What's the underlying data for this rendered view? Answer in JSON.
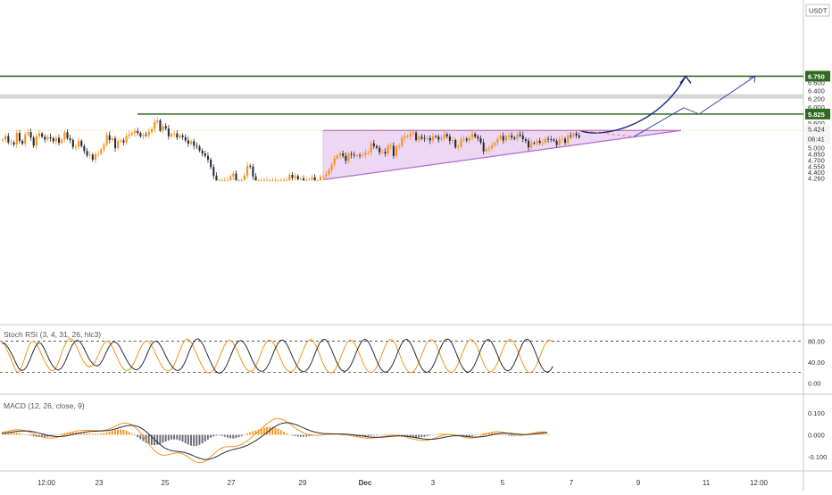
{
  "currency": "USDT",
  "colors": {
    "up": "#f7931a",
    "down": "#2b2b3a",
    "level_line": "#2e6b1e",
    "triangle_fill": "#e7c9ee",
    "triangle_line": "#b06bd0",
    "zone_fill": "#d6d6d6",
    "forecast_curve": "#1a237e",
    "forecast_line": "#3949ab",
    "forecast_dash": "#e57373",
    "rsi_k": "#f7931a",
    "rsi_d": "#2b2b3a",
    "macd_line": "#f7931a",
    "signal_line": "#2b2b3a",
    "hist_pos": "#f7931a",
    "hist_neg": "#6b6b78"
  },
  "chart_data": [
    {
      "type": "candlestick",
      "title": "",
      "x_tick_labels": [
        "12:00",
        "23",
        "25",
        "27",
        "29",
        "Dec",
        "3",
        "5",
        "7",
        "9",
        "11",
        "12:00"
      ],
      "y_tick_labels": [
        "4.260",
        "4.400",
        "4.550",
        "4.700",
        "4.850",
        "5.000",
        "5.200",
        "5.600",
        "6.000",
        "6.200",
        "6.400",
        "6.600"
      ],
      "ylim": [
        4.2,
        6.95
      ],
      "close": [
        5.2,
        5.29,
        5.13,
        5.13,
        5.08,
        5.36,
        5.17,
        5.1,
        5.33,
        5.38,
        5.25,
        5.05,
        5.28,
        5.35,
        5.27,
        5.2,
        5.26,
        5.23,
        5.16,
        5.24,
        5.12,
        5.2,
        5.38,
        5.23,
        5.19,
        5.02,
        5.02,
        5.17,
        5.04,
        4.92,
        4.81,
        4.83,
        4.71,
        4.84,
        4.85,
        4.96,
        5.08,
        5.31,
        5.19,
        5.23,
        4.99,
        5.16,
        5.18,
        5.13,
        5.29,
        5.33,
        5.36,
        5.41,
        5.36,
        5.28,
        5.32,
        5.31,
        5.39,
        5.46,
        5.63,
        5.67,
        5.42,
        5.53,
        5.47,
        5.28,
        5.34,
        5.35,
        5.25,
        5.3,
        5.26,
        5.18,
        5.1,
        5.16,
        5.05,
        5.03,
        4.93,
        4.86,
        4.8,
        4.71,
        4.53,
        4.32,
        4.2,
        4.2,
        4.2,
        4.2,
        4.2,
        4.3,
        4.37,
        4.2,
        4.2,
        4.2,
        4.32,
        4.56,
        4.54,
        4.3,
        4.2,
        4.2,
        4.2,
        4.2,
        4.2,
        4.2,
        4.2,
        4.2,
        4.2,
        4.2,
        4.2,
        4.2,
        4.34,
        4.26,
        4.31,
        4.23,
        4.25,
        4.2,
        4.2,
        4.22,
        4.28,
        4.2,
        4.2,
        4.29,
        4.29,
        4.35,
        4.46,
        4.59,
        4.74,
        4.81,
        4.86,
        4.8,
        4.68,
        4.85,
        4.83,
        4.81,
        4.82,
        4.81,
        4.82,
        4.88,
        4.89,
        5.11,
        5.04,
        5.0,
        4.89,
        4.9,
        4.86,
        5.05,
        5.05,
        4.8,
        5.03,
        5.05,
        5.24,
        5.28,
        5.28,
        5.35,
        5.37,
        5.19,
        5.27,
        5.23,
        5.22,
        5.24,
        5.18,
        5.28,
        5.27,
        5.2,
        5.24,
        5.33,
        5.28,
        5.17,
        5.19,
        5.01,
        5.03,
        5.22,
        5.22,
        5.18,
        5.24,
        5.34,
        5.27,
        5.23,
        5.13,
        4.91,
        4.97,
        4.99,
        5.06,
        5.12,
        5.22,
        5.29,
        5.18,
        5.28,
        5.3,
        5.25,
        5.22,
        5.33,
        5.3,
        5.21,
        5.17,
        5.01,
        5.12,
        5.11,
        5.17,
        5.12,
        5.13,
        5.22,
        5.21,
        5.2,
        5.17,
        5.07,
        5.21,
        5.22,
        5.12,
        5.3,
        5.28,
        5.35,
        5.3,
        5.26
      ],
      "volume_like_note": "",
      "levels": [
        {
          "label": "6.750",
          "value": 6.75
        },
        {
          "label": "5.825",
          "value": 5.825
        },
        {
          "label": "5.424",
          "value": 5.424,
          "countdown": "06:41"
        }
      ],
      "resistance_zone": [
        6.2,
        6.31
      ],
      "pattern": "ascending triangle"
    },
    {
      "type": "line",
      "title": "Stoch RSI (3, 4, 31, 26, hlc3)",
      "y_tick_labels": [
        "80.00",
        "40.00",
        "0.00"
      ],
      "ylim": [
        -8,
        110
      ],
      "bands": [
        80,
        20
      ],
      "series": [
        {
          "values": [
            80.45,
            73.6,
            61.53,
            50.08,
            35.99,
            23.21,
            19.65,
            29.74,
            45.14,
            61.95,
            75.27,
            80.49,
            78.03,
            68.25,
            56.2,
            44.56,
            34.34,
            25.96,
            22.63,
            26.38,
            37.48,
            52.63,
            67.12,
            78.74,
            84.92,
            83.72,
            76.75,
            65.32,
            52.63,
            42.0,
            34.48,
            30.88,
            31.97,
            38.57,
            49.46,
            62.0,
            72.78,
            79.92,
            79.45,
            72.17,
            61.31,
            48.96,
            37.45,
            28.79,
            23.87,
            23.93,
            28.82,
            38.03,
            50.43,
            63.04,
            73.74,
            80.49,
            80.35,
            74.43,
            64.14,
            52.42,
            41.25,
            31.92,
            25.51,
            22.97,
            24.27,
            31.24,
            43.11,
            57.13,
            70.88,
            80.9,
            84.55,
            80.56,
            71.44,
            59.57,
            46.76,
            34.75,
            25.42,
            19.8,
            18.74,
            22.53,
            30.88,
            42.93,
            56.84,
            69.8,
            79.37,
            82.61,
            78.86,
            70.2,
            58.6,
            46.02,
            34.87,
            26.63,
            22.08,
            22.73,
            29.11,
            40.43,
            54.4,
            67.85,
            77.95,
            82.27,
            80.32,
            72.72,
            61.43,
            48.62,
            36.47,
            27.14,
            21.7,
            21.22,
            25.65,
            34.53,
            46.94,
            60.66,
            73.0,
            81.08,
            83.5,
            79.01,
            68.46,
            54.95,
            41.09,
            29.31,
            21.36,
            18.7,
            21.57,
            29.51,
            41.69,
            55.74,
            68.93,
            78.51,
            82.56,
            79.39,
            70.22,
            57.97,
            44.86,
            32.73,
            23.86,
            19.84,
            20.93,
            27.07,
            37.98,
            52.02,
            66.36,
            77.64,
            83.41,
            82.14,
            74.19,
            61.6,
            47.76,
            34.86,
            25.01,
            19.9,
            20.15,
            25.53,
            35.46,
            48.57,
            62.79,
            74.72,
            82.01,
            83.23,
            77.7,
            66.64,
            52.95,
            39.44,
            28.37,
            21.53,
            20.11,
            24.01,
            32.94,
            45.59,
            59.85,
            72.41,
            80.98,
            83.76,
            79.55,
            69.57,
            56.23,
            42.45,
            30.72,
            23.3,
            21.47,
            25.39,
            34.43,
            47.45,
            61.75,
            74.24,
            82.09,
            83.92,
            78.85,
            67.99,
            54.21,
            40.33,
            28.84,
            21.36,
            19.39,
            23.06,
            31.95,
            44.86,
            59.23,
            71.9,
            80.23,
            82.57,
            77.76
          ]
        },
        {
          "values": [
            75.78,
            75.92,
            69.81,
            60.57,
            50.28,
            38.3,
            27.97,
            23.6,
            25.35,
            32.43,
            44.32,
            57.86,
            70.19,
            77.08,
            75.43,
            66.79,
            55.06,
            43.37,
            33.81,
            27.38,
            24.71,
            27.0,
            34.88,
            46.86,
            60.3,
            72.08,
            79.76,
            81.8,
            77.83,
            69.03,
            57.6,
            46.84,
            38.78,
            33.58,
            32.75,
            36.41,
            44.97,
            56.72,
            68.12,
            76.38,
            79.39,
            76.31,
            68.92,
            58.83,
            47.85,
            38.25,
            31.17,
            26.35,
            24.99,
            28.19,
            35.76,
            46.8,
            59.48,
            71.29,
            78.68,
            80.14,
            75.59,
            66.56,
            55.26,
            44.74,
            35.62,
            28.34,
            24.35,
            24.09,
            28.81,
            38.17,
            51.04,
            64.72,
            76.25,
            83.71,
            84.56,
            78.72,
            68.23,
            55.84,
            43.07,
            31.32,
            22.89,
            18.87,
            19.41,
            24.55,
            34.02,
            46.58,
            59.85,
            71.65,
            79.43,
            81.52,
            77.82,
            69.18,
            57.62,
            45.02,
            34.11,
            26.33,
            22.32,
            22.69,
            27.57,
            36.96,
            49.53,
            62.82,
            74.14,
            81.02,
            82.32,
            77.29,
            67.55,
            55.15,
            42.73,
            32.16,
            24.96,
            21.62,
            22.49,
            27.73,
            37.47,
            50.43,
            64.14,
            75.74,
            82.77,
            83.66,
            77.84,
            66.95,
            53.84,
            40.93,
            30.31,
            23.81,
            21.87,
            24.94,
            32.79,
            44.24,
            57.61,
            70.3,
            79.67,
            83.84,
            81.37,
            72.79,
            60.38,
            46.94,
            34.65,
            25.54,
            20.97,
            21.26,
            26.19,
            35.31,
            47.62,
            61.23,
            73.4,
            81.72,
            83.77,
            79.14,
            69.09,
            56.07,
            42.79,
            31.31,
            23.42,
            20.26,
            21.99,
            28.69,
            39.71,
            53.33,
            67.05,
            78.11,
            84.13,
            83.57,
            76.66,
            65.23,
            51.65,
            38.58,
            28.19,
            21.88,
            20.59,
            24.36,
            32.97,
            45.3,
            59.18,
            71.88,
            80.52,
            83.52,
            79.65,
            70.06,
            57.3,
            44.04,
            32.62,
            25.11,
            22.7,
            25.79,
            34.05,
            46.44,
            60.43,
            73.34,
            82.04,
            84.02,
            78.91,
            68.48,
            55.16,
            41.6,
            30.25,
            22.67,
            20.36,
            23.48,
            31.71
          ]
        }
      ]
    },
    {
      "type": "bar",
      "title": "MACD (12, 26, close, 9)",
      "y_tick_labels": [
        "0.100",
        "0.000",
        "-0.100"
      ],
      "ylim": [
        -0.15,
        0.15
      ],
      "histogram": [
        0.005,
        0.008,
        0.01,
        0.011,
        0.011,
        0.01,
        0.008,
        0.005,
        0.002,
        -0.001,
        -0.004,
        -0.007,
        -0.009,
        -0.01,
        -0.011,
        -0.01,
        -0.009,
        -0.007,
        -0.004,
        -0.001,
        0.002,
        0.005,
        0.008,
        0.01,
        0.011,
        0.011,
        0.011,
        0.01,
        0.009,
        0.008,
        0.007,
        0.006,
        0.005,
        0.005,
        0.005,
        0.006,
        0.008,
        0.011,
        0.015,
        0.019,
        0.023,
        0.025,
        0.025,
        0.023,
        0.019,
        0.013,
        0.006,
        -0.002,
        -0.011,
        -0.02,
        -0.029,
        -0.037,
        -0.043,
        -0.047,
        -0.048,
        -0.046,
        -0.042,
        -0.037,
        -0.031,
        -0.026,
        -0.022,
        -0.021,
        -0.022,
        -0.026,
        -0.032,
        -0.039,
        -0.045,
        -0.05,
        -0.052,
        -0.051,
        -0.046,
        -0.039,
        -0.031,
        -0.022,
        -0.014,
        -0.008,
        -0.004,
        -0.003,
        -0.005,
        -0.009,
        -0.013,
        -0.016,
        -0.017,
        -0.015,
        -0.011,
        -0.006,
        0.0,
        0.006,
        0.011,
        0.016,
        0.02,
        0.024,
        0.028,
        0.032,
        0.035,
        0.037,
        0.036,
        0.033,
        0.028,
        0.021,
        0.014,
        0.007,
        0.002,
        -0.003,
        -0.006,
        -0.008,
        -0.009,
        -0.009,
        -0.008,
        -0.006,
        -0.005,
        -0.003,
        -0.001,
        0.001,
        0.002,
        0.003,
        0.003,
        0.003,
        0.002,
        0.001,
        0.0,
        -0.001,
        -0.002,
        -0.004,
        -0.005,
        -0.006,
        -0.007,
        -0.008,
        -0.008,
        -0.007,
        -0.006,
        -0.005,
        -0.003,
        -0.002,
        0.0,
        0.001,
        0.002,
        0.002,
        0.002,
        0.001,
        -0.001,
        -0.003,
        -0.005,
        -0.007,
        -0.009,
        -0.011,
        -0.012,
        -0.013,
        -0.012,
        -0.011,
        -0.009,
        -0.006,
        -0.003,
        0.0,
        0.003,
        0.005,
        0.006,
        0.006,
        0.005,
        0.003,
        0.0,
        -0.003,
        -0.006,
        -0.008,
        -0.009,
        -0.009,
        -0.008,
        -0.005,
        -0.002,
        0.001,
        0.004,
        0.007,
        0.009,
        0.01,
        0.01,
        0.009,
        0.007,
        0.004,
        0.001,
        -0.002,
        -0.004,
        -0.005,
        -0.005,
        -0.004,
        -0.002,
        0.0,
        0.003,
        0.005,
        0.007,
        0.008,
        0.008,
        0.007,
        0.006,
        0.004,
        0.002
      ]
    }
  ]
}
